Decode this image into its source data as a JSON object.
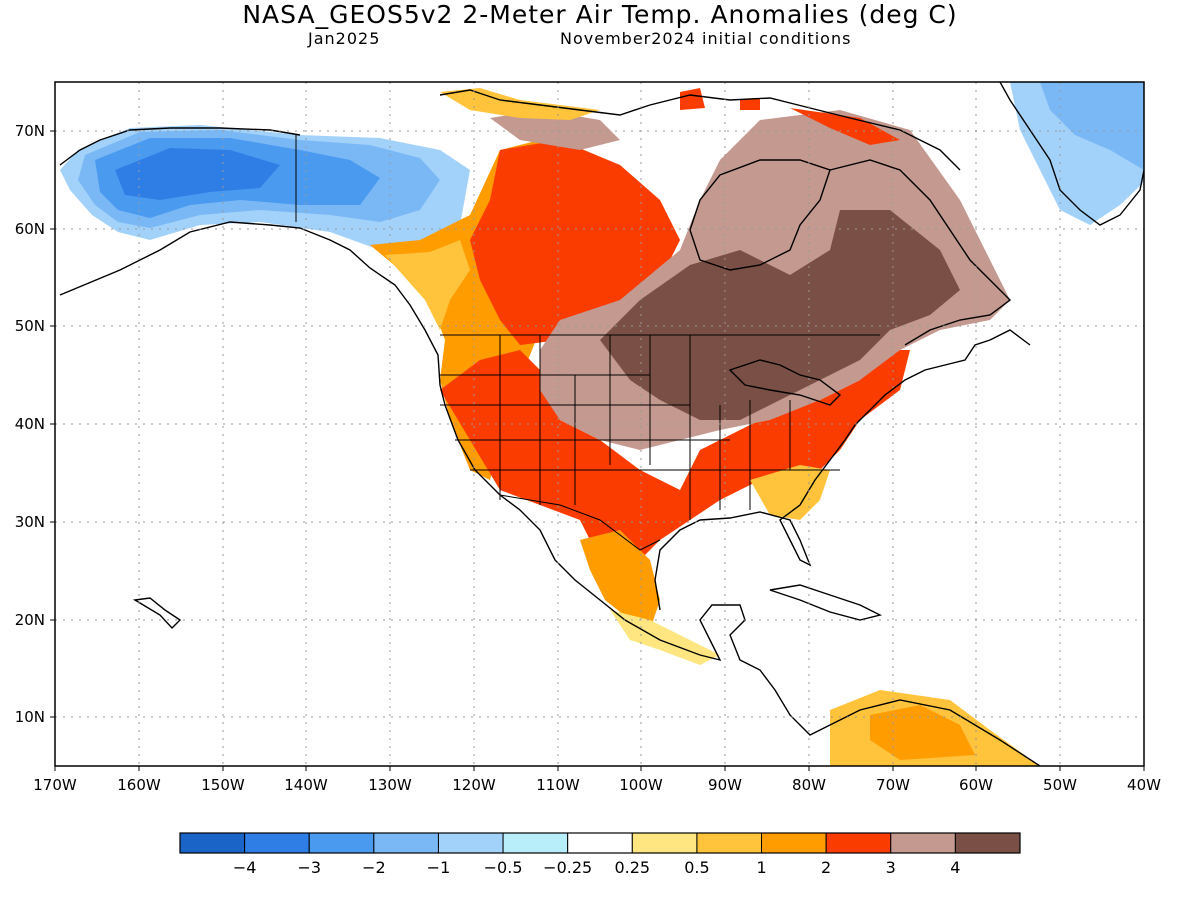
{
  "header": {
    "title": "NASA_GEOS5v2 2-Meter Air Temp. Anomalies (deg C)",
    "forecast_month": "Jan2025",
    "init_conditions": "November2024 initial conditions"
  },
  "map": {
    "lon_ticks": [
      "170W",
      "160W",
      "150W",
      "140W",
      "130W",
      "120W",
      "110W",
      "100W",
      "90W",
      "80W",
      "70W",
      "60W",
      "50W",
      "40W"
    ],
    "lat_ticks": [
      "70N",
      "60N",
      "50N",
      "40N",
      "30N",
      "20N",
      "10N"
    ],
    "lon_range": [
      -170,
      -40
    ],
    "lat_range": [
      5,
      75
    ],
    "grid": true,
    "colors": {
      "land_outline": "#000000",
      "grid": "#999999"
    }
  },
  "colorbar": {
    "colors": [
      "#1a64c8",
      "#2e7ee6",
      "#4a9af0",
      "#7ab8f5",
      "#a2d2fa",
      "#b8eefa",
      "#ffffff",
      "#ffe680",
      "#ffc43c",
      "#ff9c00",
      "#fa3c00",
      "#c49a90",
      "#7a4f45"
    ],
    "labels": [
      "−4",
      "−3",
      "−2",
      "−1",
      "−0.5",
      "−0.25",
      "0.25",
      "0.5",
      "1",
      "2",
      "3",
      "4"
    ]
  }
}
